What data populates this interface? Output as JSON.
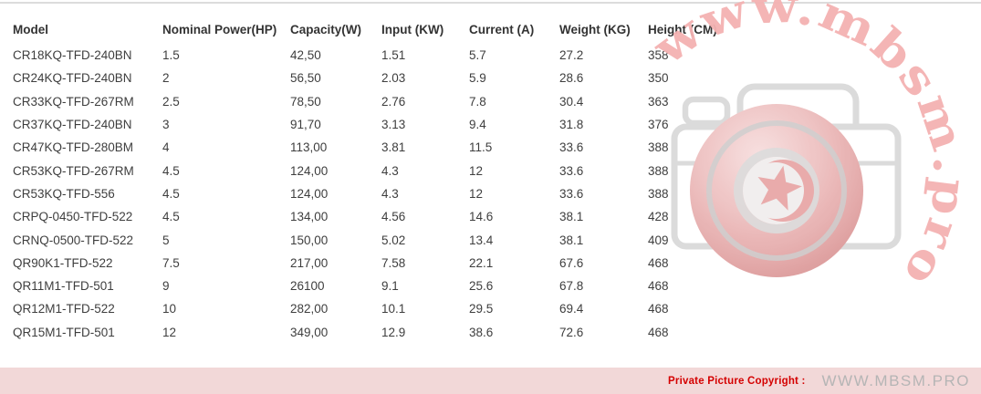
{
  "table": {
    "columns": [
      "Model",
      "Nominal Power(HP)",
      "Capacity(W)",
      "Input (KW)",
      "Current (A)",
      "Weight (KG)",
      "Height (CM)"
    ],
    "rows": [
      [
        "CR18KQ-TFD-240BN",
        "1.5",
        "42,50",
        "1.51",
        "5.7",
        "27.2",
        "358"
      ],
      [
        "CR24KQ-TFD-240BN",
        "2",
        "56,50",
        "2.03",
        "5.9",
        "28.6",
        "350"
      ],
      [
        "CR33KQ-TFD-267RM",
        "2.5",
        "78,50",
        "2.76",
        "7.8",
        "30.4",
        "363"
      ],
      [
        "CR37KQ-TFD-240BN",
        "3",
        "91,70",
        "3.13",
        "9.4",
        "31.8",
        "376"
      ],
      [
        "CR47KQ-TFD-280BM",
        "4",
        "113,00",
        "3.81",
        "11.5",
        "33.6",
        "388"
      ],
      [
        "CR53KQ-TFD-267RM",
        "4.5",
        "124,00",
        "4.3",
        "12",
        "33.6",
        "388"
      ],
      [
        "CR53KQ-TFD-556",
        "4.5",
        "124,00",
        "4.3",
        "12",
        "33.6",
        "388"
      ],
      [
        "CRPQ-0450-TFD-522",
        "4.5",
        "134,00",
        "4.56",
        "14.6",
        "38.1",
        "428"
      ],
      [
        "CRNQ-0500-TFD-522",
        "5",
        "150,00",
        "5.02",
        "13.4",
        "38.1",
        "409"
      ],
      [
        "QR90K1-TFD-522",
        "7.5",
        "217,00",
        "7.58",
        "22.1",
        "67.6",
        "468"
      ],
      [
        "QR11M1-TFD-501",
        "9",
        "26100",
        "9.1",
        "25.6",
        "67.8",
        "468"
      ],
      [
        "QR12M1-TFD-522",
        "10",
        "282,00",
        "10.1",
        "29.5",
        "69.4",
        "468"
      ],
      [
        "QR15M1-TFD-501",
        "12",
        "349,00",
        "12.9",
        "38.6",
        "72.6",
        "468"
      ]
    ]
  },
  "watermark": {
    "arc_text": "www.mbsm.pro",
    "logo_icon": "camera-tunisia-emblem-icon"
  },
  "footer": {
    "copyright_label": "Private Picture Copyright :",
    "site_text": "WWW.MBSM.PRO"
  },
  "colors": {
    "footer_bg": "#f2d8d8",
    "copyright_red": "#d40000",
    "site_gray": "#b5b5b5",
    "watermark_pink": "#f4b2b2",
    "camera_gray": "#dadada",
    "table_text": "#3e3e3e"
  }
}
